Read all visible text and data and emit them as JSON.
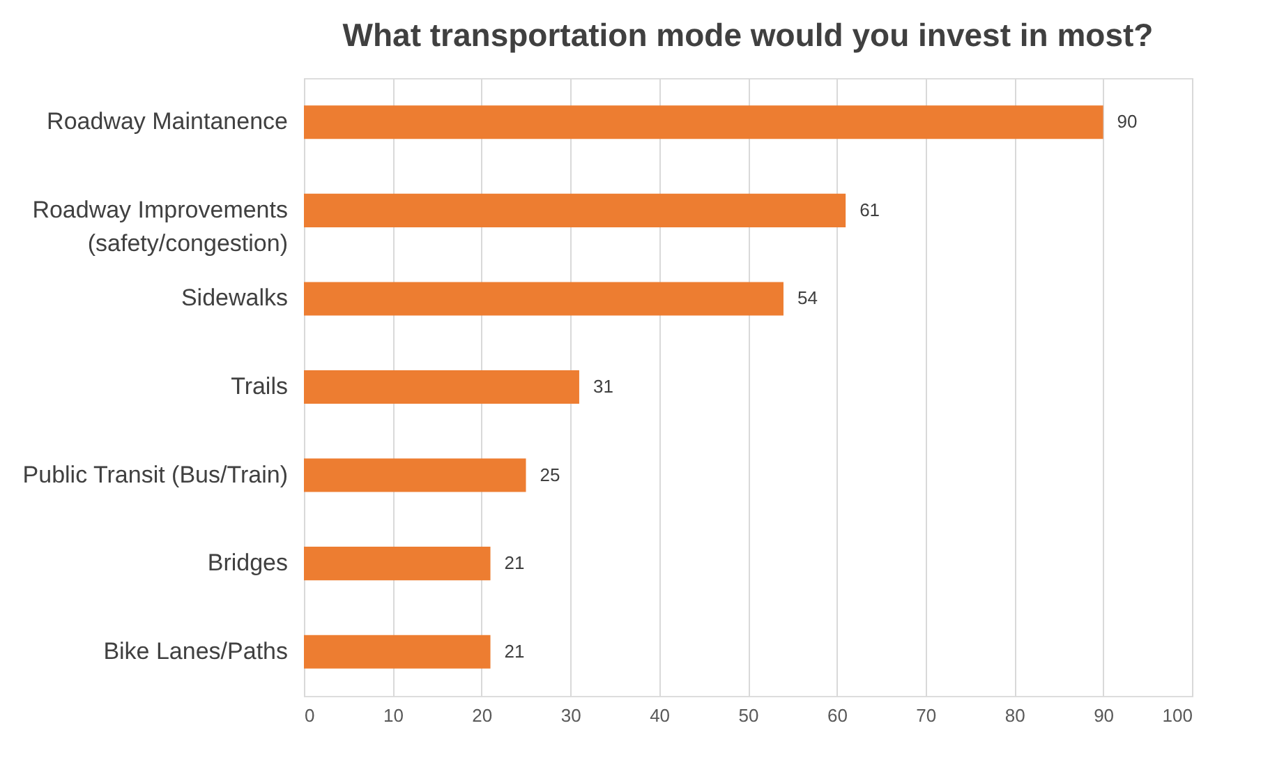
{
  "chart_data": {
    "type": "bar",
    "orientation": "horizontal",
    "title": "What transportation mode would you invest in most?",
    "categories": [
      "Roadway Maintanence",
      "Roadway Improvements\n(safety/congestion)",
      "Sidewalks",
      "Trails",
      "Public Transit (Bus/Train)",
      "Bridges",
      "Bike Lanes/Paths"
    ],
    "values": [
      90,
      61,
      54,
      31,
      25,
      21,
      21
    ],
    "color": "#ed7d31",
    "xlim": [
      0,
      100
    ],
    "xticks": [
      0,
      10,
      20,
      30,
      40,
      50,
      60,
      70,
      80,
      90,
      100
    ],
    "grid": "x",
    "data_labels": true
  }
}
